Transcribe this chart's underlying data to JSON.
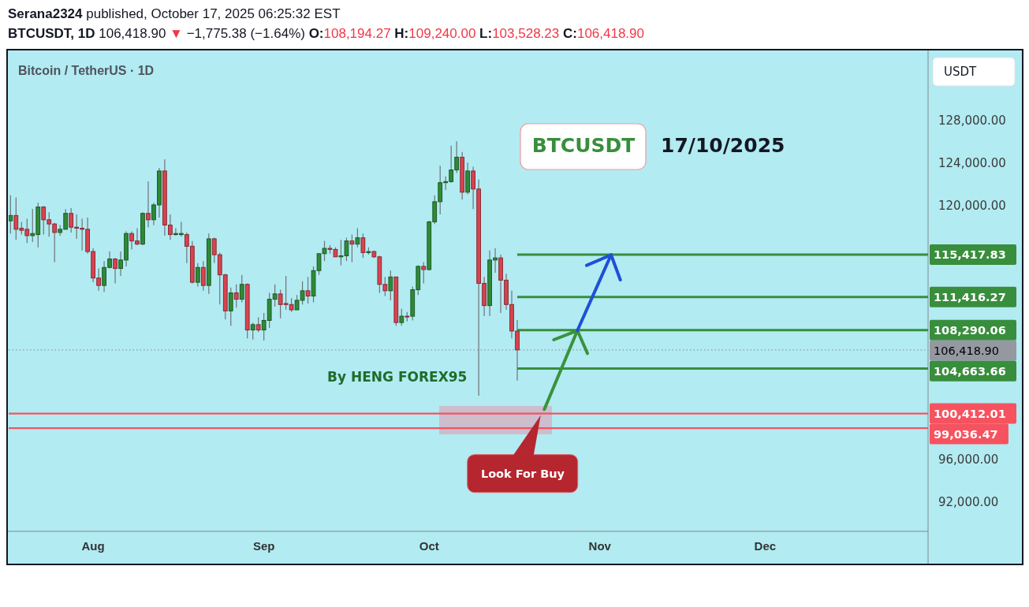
{
  "chart_data": {
    "type": "candlestick",
    "title": "Serana2324 published, October 17, 2025 06:25:32 EST",
    "subtitle": "BTCUSDT, 1D 106,418.90 ▼ −1,775.38 (−1.64%) O:108,194.27 H:109,240.00 L:103,528.23 C:106,418.90",
    "ylabel": "USDT",
    "annotations": [
      "Bitcoin / TetherUS · 1D",
      "BTCUSDT",
      "17/10/2025",
      "By HENG FOREX95",
      "Look For Buy"
    ],
    "xlim": [
      "2025-07-16T16:00",
      "2025-12-30T14:00"
    ],
    "xticks": [
      {
        "value": "2025-08-01",
        "label": "Aug"
      },
      {
        "value": "2025-09-01",
        "label": "Sep"
      },
      {
        "value": "2025-10-01",
        "label": "Oct"
      },
      {
        "value": "2025-11-01",
        "label": "Nov"
      },
      {
        "value": "2025-12-01",
        "label": "Dec"
      }
    ],
    "ylim": [
      89300,
      134600
    ],
    "yticks": [
      {
        "value": 92000,
        "label": "92,000.00"
      },
      {
        "value": 96000,
        "label": "96,000.00"
      },
      {
        "value": 120000,
        "label": "120,000.00"
      },
      {
        "value": 124000,
        "label": "124,000.00"
      },
      {
        "value": 128000,
        "label": "128,000.00"
      }
    ],
    "x": [
      "2025-07-17",
      "2025-07-18",
      "2025-07-19",
      "2025-07-20",
      "2025-07-21",
      "2025-07-22",
      "2025-07-23",
      "2025-07-24",
      "2025-07-25",
      "2025-07-26",
      "2025-07-27",
      "2025-07-28",
      "2025-07-29",
      "2025-07-30",
      "2025-07-31",
      "2025-08-01",
      "2025-08-02",
      "2025-08-03",
      "2025-08-04",
      "2025-08-05",
      "2025-08-06",
      "2025-08-07",
      "2025-08-08",
      "2025-08-09",
      "2025-08-10",
      "2025-08-11",
      "2025-08-12",
      "2025-08-13",
      "2025-08-14",
      "2025-08-15",
      "2025-08-16",
      "2025-08-17",
      "2025-08-18",
      "2025-08-19",
      "2025-08-20",
      "2025-08-21",
      "2025-08-22",
      "2025-08-23",
      "2025-08-24",
      "2025-08-25",
      "2025-08-26",
      "2025-08-27",
      "2025-08-28",
      "2025-08-29",
      "2025-08-30",
      "2025-08-31",
      "2025-09-01",
      "2025-09-02",
      "2025-09-03",
      "2025-09-04",
      "2025-09-05",
      "2025-09-06",
      "2025-09-07",
      "2025-09-08",
      "2025-09-09",
      "2025-09-10",
      "2025-09-11",
      "2025-09-12",
      "2025-09-13",
      "2025-09-14",
      "2025-09-15",
      "2025-09-16",
      "2025-09-17",
      "2025-09-18",
      "2025-09-19",
      "2025-09-20",
      "2025-09-21",
      "2025-09-22",
      "2025-09-23",
      "2025-09-24",
      "2025-09-25",
      "2025-09-26",
      "2025-09-27",
      "2025-09-28",
      "2025-09-29",
      "2025-09-30",
      "2025-10-01",
      "2025-10-02",
      "2025-10-03",
      "2025-10-04",
      "2025-10-05",
      "2025-10-06",
      "2025-10-07",
      "2025-10-08",
      "2025-10-09",
      "2025-10-10",
      "2025-10-11",
      "2025-10-12",
      "2025-10-13",
      "2025-10-14",
      "2025-10-15",
      "2025-10-16",
      "2025-10-17"
    ],
    "ohlc": [
      [
        118600,
        121000,
        117400,
        119100
      ],
      [
        119100,
        120800,
        116800,
        117800
      ],
      [
        117900,
        118500,
        117300,
        117700
      ],
      [
        117800,
        118800,
        116500,
        117200
      ],
      [
        117200,
        119700,
        116600,
        117400
      ],
      [
        117300,
        120300,
        116100,
        119900
      ],
      [
        119900,
        120000,
        117300,
        118700
      ],
      [
        118700,
        119400,
        117100,
        118300
      ],
      [
        118300,
        118400,
        114700,
        117500
      ],
      [
        117500,
        118200,
        117200,
        117800
      ],
      [
        117800,
        119700,
        117800,
        119300
      ],
      [
        119300,
        119800,
        117500,
        118000
      ],
      [
        118000,
        119200,
        116900,
        117900
      ],
      [
        117900,
        118800,
        115800,
        117800
      ],
      [
        117800,
        118900,
        115500,
        115700
      ],
      [
        115700,
        116000,
        112800,
        113200
      ],
      [
        113200,
        114100,
        112000,
        112500
      ],
      [
        112500,
        114800,
        111900,
        114200
      ],
      [
        114200,
        115700,
        114100,
        115000
      ],
      [
        115000,
        115100,
        112700,
        114100
      ],
      [
        114100,
        115700,
        113400,
        114900
      ],
      [
        114900,
        117600,
        114300,
        117400
      ],
      [
        117400,
        117600,
        115900,
        116700
      ],
      [
        116700,
        117900,
        116300,
        116400
      ],
      [
        116400,
        119400,
        116300,
        119300
      ],
      [
        119300,
        122300,
        118000,
        118700
      ],
      [
        118700,
        120300,
        118200,
        120100
      ],
      [
        120100,
        123600,
        118900,
        123300
      ],
      [
        123300,
        124400,
        117200,
        118200
      ],
      [
        118200,
        119200,
        116800,
        117300
      ],
      [
        117300,
        117900,
        117200,
        117400
      ],
      [
        117300,
        118500,
        117100,
        117400
      ],
      [
        117300,
        117500,
        114600,
        116200
      ],
      [
        116200,
        116700,
        112700,
        112800
      ],
      [
        112800,
        114600,
        112400,
        114200
      ],
      [
        114200,
        114800,
        112000,
        112500
      ],
      [
        112500,
        117400,
        111700,
        116900
      ],
      [
        116900,
        117000,
        114600,
        115400
      ],
      [
        115400,
        115600,
        110700,
        113500
      ],
      [
        113500,
        113600,
        109300,
        110100
      ],
      [
        110100,
        112300,
        108700,
        111800
      ],
      [
        111800,
        112600,
        110400,
        111200
      ],
      [
        111200,
        113500,
        110900,
        112600
      ],
      [
        112600,
        112700,
        107500,
        108300
      ],
      [
        108300,
        109000,
        107400,
        108800
      ],
      [
        108800,
        109500,
        108100,
        108300
      ],
      [
        108300,
        109900,
        107300,
        109200
      ],
      [
        109200,
        111800,
        108500,
        111200
      ],
      [
        111200,
        112600,
        110500,
        111700
      ],
      [
        111700,
        112100,
        109400,
        110700
      ],
      [
        110800,
        113400,
        110200,
        110700
      ],
      [
        110700,
        111300,
        110000,
        110200
      ],
      [
        110200,
        111600,
        110200,
        111100
      ],
      [
        111100,
        112900,
        110700,
        112000
      ],
      [
        112000,
        113300,
        110800,
        111500
      ],
      [
        111500,
        114300,
        110900,
        113900
      ],
      [
        113900,
        115500,
        113500,
        115500
      ],
      [
        115500,
        116700,
        114800,
        116000
      ],
      [
        116000,
        116300,
        115500,
        115900
      ],
      [
        115900,
        116100,
        115200,
        115200
      ],
      [
        115200,
        116800,
        114400,
        115300
      ],
      [
        115300,
        117000,
        114800,
        116700
      ],
      [
        116700,
        117300,
        114700,
        116400
      ],
      [
        116400,
        117900,
        116100,
        117000
      ],
      [
        117000,
        117400,
        115100,
        115600
      ],
      [
        115600,
        116100,
        115400,
        115700
      ],
      [
        115700,
        115800,
        115100,
        115200
      ],
      [
        115200,
        115300,
        111800,
        112600
      ],
      [
        112600,
        113300,
        111500,
        112000
      ],
      [
        112000,
        113900,
        111100,
        113300
      ],
      [
        113300,
        113300,
        108700,
        109000
      ],
      [
        109000,
        110300,
        108700,
        109600
      ],
      [
        109600,
        110000,
        109100,
        109600
      ],
      [
        109600,
        112400,
        109200,
        112100
      ],
      [
        112100,
        114400,
        111600,
        114300
      ],
      [
        114300,
        114700,
        112700,
        114000
      ],
      [
        114000,
        118600,
        113900,
        118500
      ],
      [
        118500,
        121000,
        118300,
        120400
      ],
      [
        120400,
        123800,
        119200,
        122200
      ],
      [
        122200,
        122800,
        121500,
        122300
      ],
      [
        122300,
        125700,
        122200,
        123400
      ],
      [
        123400,
        126100,
        123100,
        124600
      ],
      [
        124600,
        125100,
        120600,
        121300
      ],
      [
        121300,
        124100,
        121100,
        123300
      ],
      [
        123300,
        123700,
        119700,
        121600
      ],
      [
        121600,
        122500,
        102100,
        112700
      ],
      [
        112700,
        113300,
        109600,
        110600
      ],
      [
        110600,
        115800,
        109600,
        114900
      ],
      [
        114900,
        116000,
        113700,
        115100
      ],
      [
        115100,
        115400,
        109900,
        113000
      ],
      [
        113000,
        113600,
        110200,
        110700
      ],
      [
        110700,
        112000,
        107500,
        108200
      ],
      [
        108194.27,
        109240.0,
        103528.23,
        106418.9
      ]
    ],
    "colors": [
      "#2e8b38",
      "#d9434f",
      "#d9434f",
      "#d9434f",
      "#2e8b38",
      "#2e8b38",
      "#d9434f",
      "#d9434f",
      "#d9434f",
      "#2e8b38",
      "#2e8b38",
      "#d9434f",
      "#d9434f",
      "#d9434f",
      "#d9434f",
      "#d9434f",
      "#d9434f",
      "#2e8b38",
      "#2e8b38",
      "#d9434f",
      "#2e8b38",
      "#2e8b38",
      "#d9434f",
      "#d9434f",
      "#2e8b38",
      "#d9434f",
      "#2e8b38",
      "#2e8b38",
      "#d9434f",
      "#d9434f",
      "#2e8b38",
      "#2e8b38",
      "#d9434f",
      "#d9434f",
      "#2e8b38",
      "#d9434f",
      "#2e8b38",
      "#d9434f",
      "#d9434f",
      "#d9434f",
      "#2e8b38",
      "#d9434f",
      "#2e8b38",
      "#d9434f",
      "#2e8b38",
      "#d9434f",
      "#2e8b38",
      "#2e8b38",
      "#2e8b38",
      "#d9434f",
      "#d9434f",
      "#d9434f",
      "#2e8b38",
      "#2e8b38",
      "#d9434f",
      "#2e8b38",
      "#2e8b38",
      "#2e8b38",
      "#d9434f",
      "#d9434f",
      "#2e8b38",
      "#2e8b38",
      "#d9434f",
      "#2e8b38",
      "#d9434f",
      "#2e8b38",
      "#d9434f",
      "#d9434f",
      "#d9434f",
      "#2e8b38",
      "#d9434f",
      "#2e8b38",
      "#d9434f",
      "#2e8b38",
      "#2e8b38",
      "#d9434f",
      "#2e8b38",
      "#2e8b38",
      "#2e8b38",
      "#2e8b38",
      "#2e8b38",
      "#2e8b38",
      "#d9434f",
      "#2e8b38",
      "#d9434f",
      "#d9434f",
      "#d9434f",
      "#2e8b38",
      "#2e8b38",
      "#d9434f",
      "#d9434f",
      "#d9434f",
      "#d9434f"
    ],
    "series": [
      {
        "type": "line",
        "x": [
          "2025-10-17",
          "2025-12-30T14:00"
        ],
        "values": [
          115417.83,
          115417.83
        ],
        "color": "#388e3c",
        "value_labels": [
          null,
          "115,417.83"
        ]
      },
      {
        "type": "line",
        "x": [
          "2025-10-17",
          "2025-12-30T14:00"
        ],
        "values": [
          111416.27,
          111416.27
        ],
        "color": "#388e3c",
        "value_labels": [
          null,
          "111,416.27"
        ]
      },
      {
        "type": "line",
        "x": [
          "2025-10-17",
          "2025-12-30T14:00"
        ],
        "values": [
          108290.06,
          108290.06
        ],
        "color": "#388e3c",
        "value_labels": [
          null,
          "108,290.06"
        ]
      },
      {
        "type": "line",
        "x": [
          "2025-10-17",
          "2025-12-30T14:00"
        ],
        "values": [
          104663.66,
          104663.66
        ],
        "color": "#388e3c",
        "value_labels": [
          null,
          "104,663.66"
        ]
      }
    ],
    "ref_lines": [
      {
        "axis": "y",
        "value": 106418.9,
        "label": "106,418.90",
        "color": "#9598a1",
        "line_style": "dotted"
      },
      {
        "axis": "y",
        "value": 100412.01,
        "label": "100,412.01",
        "color": "#f7525f"
      },
      {
        "axis": "y",
        "value": 99036.47,
        "label": "99,036.47",
        "color": "#f7525f"
      }
    ]
  }
}
